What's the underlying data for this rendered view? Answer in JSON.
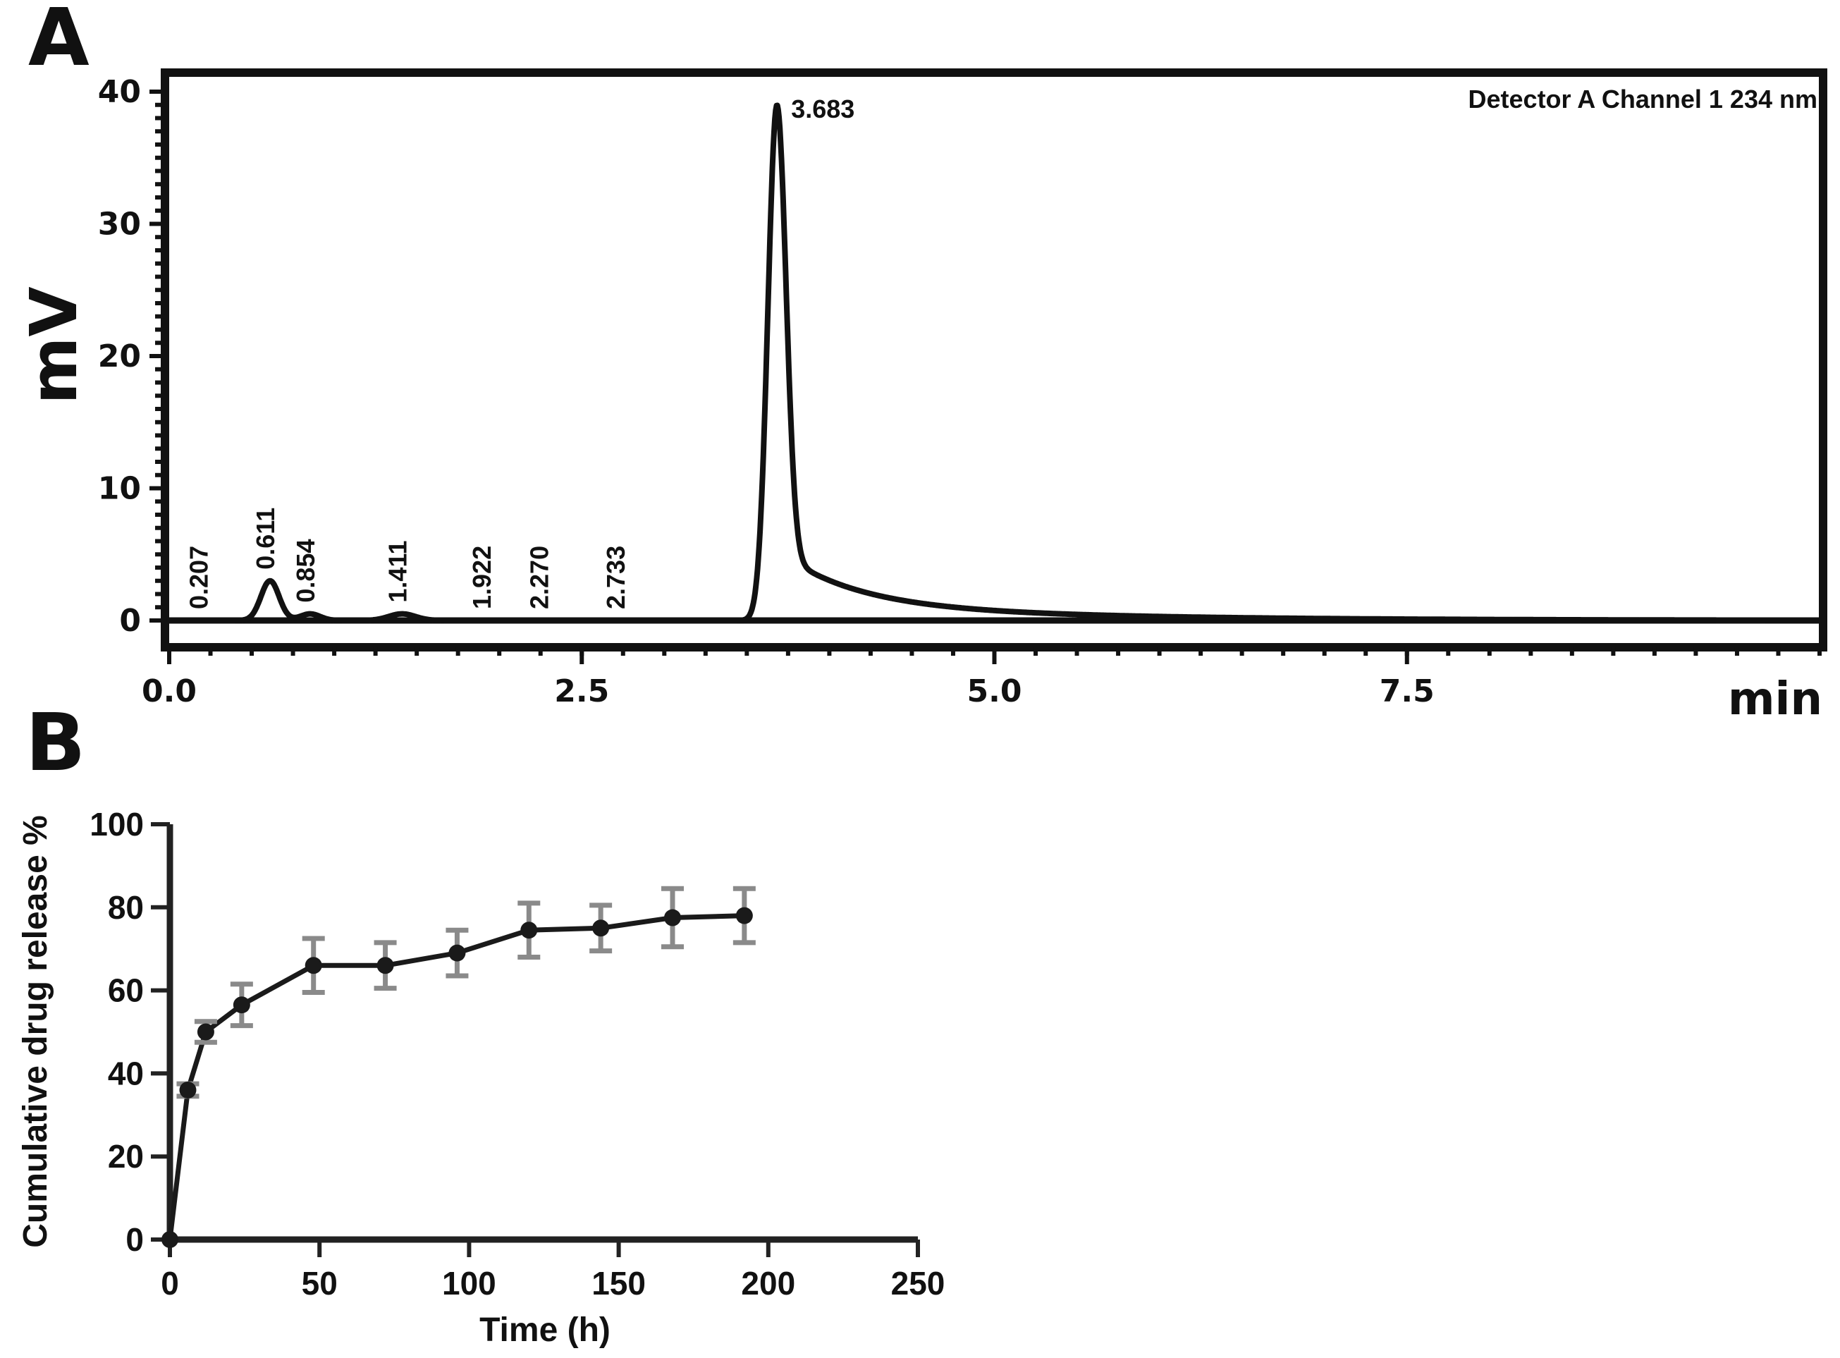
{
  "figure": {
    "panel_a_label": "A",
    "panel_b_label": "B"
  },
  "colors": {
    "ink": "#111111",
    "error_bar": "#8a8a8a",
    "background": "#ffffff"
  },
  "chart_data": [
    {
      "id": "A",
      "type": "line",
      "title": "",
      "annotation": "Detector A Channel 1 234 nm",
      "xlabel": "min",
      "ylabel": "mV",
      "xlim": [
        0,
        10
      ],
      "ylim": [
        -2,
        41
      ],
      "xticks": [
        0.0,
        2.5,
        5.0,
        7.5
      ],
      "xtick_labels": [
        "0.0",
        "2.5",
        "5.0",
        "7.5"
      ],
      "yticks": [
        0,
        10,
        20,
        30,
        40
      ],
      "ytick_labels": [
        "0",
        "10",
        "20",
        "30",
        "40"
      ],
      "grid": false,
      "baseline": 0,
      "peaks": [
        {
          "label": "0.207",
          "rt": 0.207,
          "height": 0.0,
          "width": 0.05
        },
        {
          "label": "0.611",
          "rt": 0.611,
          "height": 3.0,
          "width": 0.055
        },
        {
          "label": "0.854",
          "rt": 0.854,
          "height": 0.5,
          "width": 0.06
        },
        {
          "label": "1.411",
          "rt": 1.411,
          "height": 0.5,
          "width": 0.08
        },
        {
          "label": "1.922",
          "rt": 1.922,
          "height": 0.0,
          "width": 0.05
        },
        {
          "label": "2.270",
          "rt": 2.27,
          "height": 0.0,
          "width": 0.05
        },
        {
          "label": "2.733",
          "rt": 2.733,
          "height": 0.0,
          "width": 0.05
        },
        {
          "label": "3.683",
          "rt": 3.683,
          "height": 39.0,
          "width": 0.055,
          "tail": [
            4.0,
            0.45,
            1.3,
            1.5
          ]
        }
      ]
    },
    {
      "id": "B",
      "type": "line",
      "title": "",
      "xlabel": "Time (h)",
      "ylabel": "Cumulative drug release %",
      "xlim": [
        0,
        250
      ],
      "ylim": [
        0,
        100
      ],
      "xticks": [
        0,
        50,
        100,
        150,
        200,
        250
      ],
      "xtick_labels": [
        "0",
        "50",
        "100",
        "150",
        "200",
        "250"
      ],
      "yticks": [
        0,
        20,
        40,
        60,
        80,
        100
      ],
      "ytick_labels": [
        "0",
        "20",
        "40",
        "60",
        "80",
        "100"
      ],
      "grid": false,
      "series": [
        {
          "name": "Cumulative drug release",
          "x": [
            0,
            6,
            12,
            24,
            48,
            72,
            96,
            120,
            144,
            168,
            192
          ],
          "y": [
            0,
            36,
            50,
            56.5,
            66,
            66,
            69,
            74.5,
            75,
            77.5,
            78
          ],
          "error": [
            0,
            1.5,
            2.5,
            5,
            6.5,
            5.5,
            5.5,
            6.5,
            5.5,
            7,
            6.5
          ]
        }
      ]
    }
  ]
}
